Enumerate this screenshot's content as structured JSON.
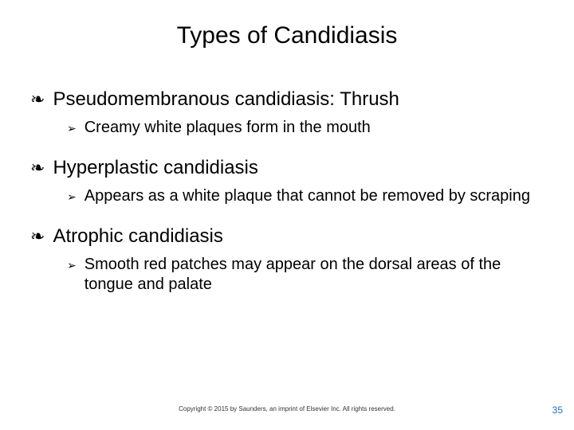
{
  "title": "Types of Candidiasis",
  "bullets": {
    "b1": "Pseudomembranous candidiasis: Thrush",
    "b1a": "Creamy white plaques form in the mouth",
    "b2": "Hyperplastic candidiasis",
    "b2a": "Appears as a white plaque that cannot be removed by scraping",
    "b3": "Atrophic candidiasis",
    "b3a": "Smooth red patches may appear on the dorsal areas of the tongue and palate"
  },
  "glyphs": {
    "l1": "❧",
    "l2": "➢"
  },
  "footer": {
    "copyright": "Copyright © 2015 by Saunders, an imprint of Elsevier Inc. All rights reserved.",
    "page": "35"
  },
  "colors": {
    "background": "#ffffff",
    "text": "#000000",
    "page_num": "#1f6fb5"
  },
  "typography": {
    "title_fontsize": 30,
    "l1_fontsize": 24,
    "l2_fontsize": 20,
    "copyright_fontsize": 8,
    "page_fontsize": 12,
    "font_family": "Arial"
  }
}
